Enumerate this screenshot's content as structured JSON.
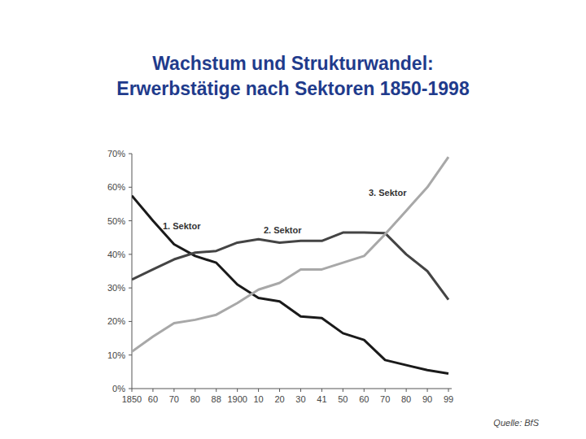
{
  "chart_data": {
    "type": "line",
    "title": "Wachstum und Strukturwandel:",
    "subtitle": "Erwerbstätige nach Sektoren 1850-1998",
    "source": "Quelle: BfS",
    "categories": [
      "1850",
      "60",
      "70",
      "80",
      "88",
      "1900",
      "10",
      "20",
      "30",
      "41",
      "50",
      "60",
      "70",
      "80",
      "90",
      "99"
    ],
    "series": [
      {
        "name": "1. Sektor",
        "color": "#1a1a1a",
        "values": [
          57.5,
          50,
          43,
          39.5,
          37.5,
          31,
          27,
          26,
          21.5,
          21,
          16.5,
          14.5,
          8.5,
          7,
          5.5,
          4.5
        ]
      },
      {
        "name": "2. Sektor",
        "color": "#444444",
        "values": [
          32.5,
          35.5,
          38.5,
          40.5,
          41,
          43.5,
          44.5,
          43.5,
          44,
          44,
          46.5,
          46.5,
          46.3,
          40,
          35,
          26.5
        ]
      },
      {
        "name": "3. Sektor",
        "color": "#a8a8a8",
        "values": [
          11,
          15.5,
          19.5,
          20.5,
          22,
          25.5,
          29.5,
          31.5,
          35.5,
          35.5,
          37.5,
          39.5,
          46,
          53,
          60,
          69
        ]
      }
    ],
    "ylim": [
      0,
      70
    ],
    "yticks": [
      {
        "value": 0,
        "label": "0%"
      },
      {
        "value": 10,
        "label": "10%"
      },
      {
        "value": 20,
        "label": "20%"
      },
      {
        "value": 30,
        "label": "30%"
      },
      {
        "value": 40,
        "label": "40%"
      },
      {
        "value": 50,
        "label": "50%"
      },
      {
        "value": 60,
        "label": "60%"
      },
      {
        "value": 70,
        "label": "70%"
      }
    ],
    "grid": false
  }
}
